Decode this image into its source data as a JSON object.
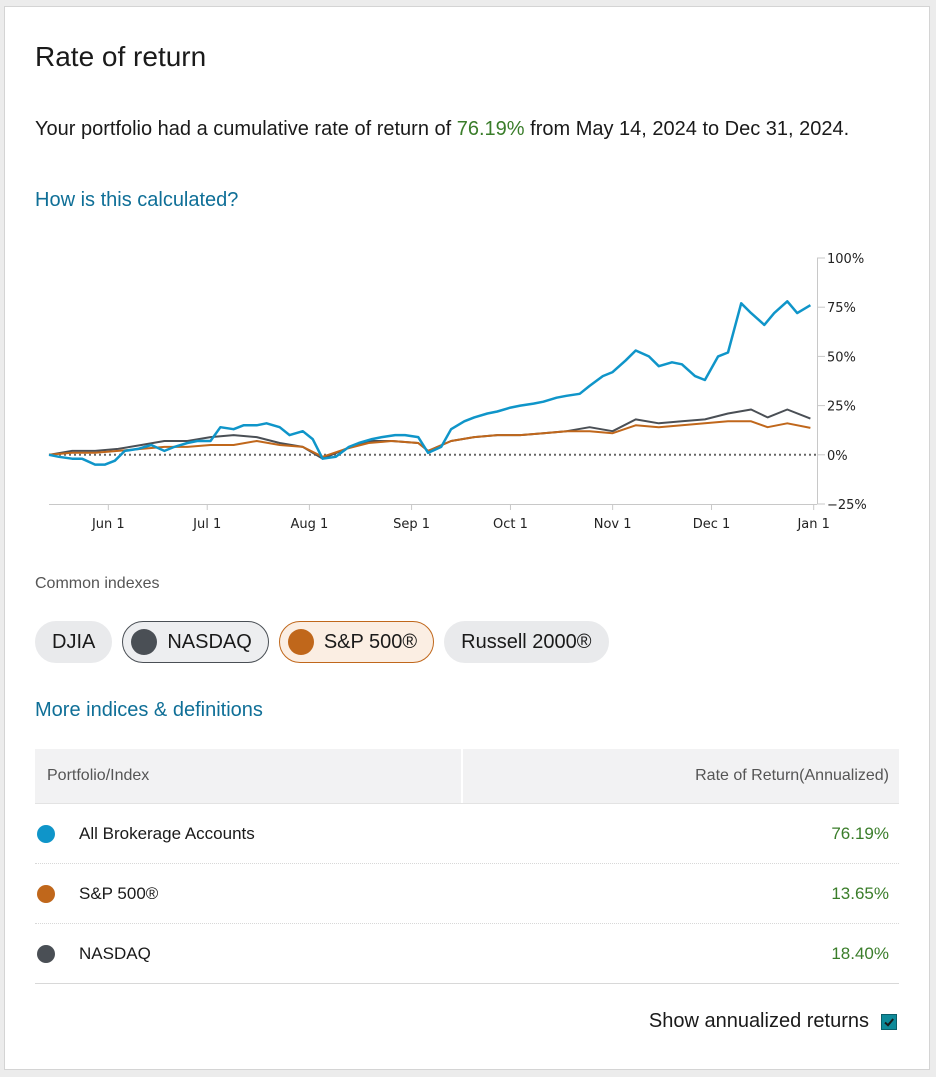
{
  "card": {
    "title": "Rate of return",
    "summary_prefix": "Your portfolio had a cumulative rate of return of ",
    "summary_pct": "76.19%",
    "summary_suffix": " from May 14, 2024 to Dec 31, 2024.",
    "calc_link": "How is this calculated?"
  },
  "colors": {
    "portfolio": "#0f95c9",
    "sp500": "#c0671b",
    "nasdaq": "#4a4f55",
    "positive": "#3a7d2a",
    "link": "#0f6f97"
  },
  "chart_data": {
    "type": "line",
    "x_ticks": [
      "Jun 1",
      "Jul 1",
      "Aug 1",
      "Sep 1",
      "Oct 1",
      "Nov 1",
      "Dec 1",
      "Jan 1"
    ],
    "y_ticks": [
      "100%",
      "75%",
      "50%",
      "25%",
      "0%",
      "−25%"
    ],
    "ylim": [
      -25,
      100
    ],
    "xlim": [
      "2024-05-14",
      "2025-01-02"
    ],
    "zero_line": true,
    "series": [
      {
        "name": "All Brokerage Accounts",
        "color": "#0f95c9",
        "points": [
          [
            "2024-05-14",
            0
          ],
          [
            "2024-05-17",
            -1
          ],
          [
            "2024-05-21",
            -2
          ],
          [
            "2024-05-24",
            -2
          ],
          [
            "2024-05-28",
            -5
          ],
          [
            "2024-05-31",
            -5
          ],
          [
            "2024-06-03",
            -3
          ],
          [
            "2024-06-06",
            2
          ],
          [
            "2024-06-10",
            3
          ],
          [
            "2024-06-14",
            5
          ],
          [
            "2024-06-18",
            2
          ],
          [
            "2024-06-21",
            4
          ],
          [
            "2024-06-25",
            6
          ],
          [
            "2024-06-28",
            7
          ],
          [
            "2024-07-02",
            7
          ],
          [
            "2024-07-05",
            14
          ],
          [
            "2024-07-09",
            13
          ],
          [
            "2024-07-12",
            15
          ],
          [
            "2024-07-16",
            15
          ],
          [
            "2024-07-19",
            16
          ],
          [
            "2024-07-23",
            14
          ],
          [
            "2024-07-26",
            10
          ],
          [
            "2024-07-30",
            12
          ],
          [
            "2024-08-02",
            8
          ],
          [
            "2024-08-05",
            -2
          ],
          [
            "2024-08-09",
            -1
          ],
          [
            "2024-08-13",
            4
          ],
          [
            "2024-08-16",
            6
          ],
          [
            "2024-08-20",
            8
          ],
          [
            "2024-08-23",
            9
          ],
          [
            "2024-08-27",
            10
          ],
          [
            "2024-08-30",
            10
          ],
          [
            "2024-09-03",
            9
          ],
          [
            "2024-09-06",
            1
          ],
          [
            "2024-09-10",
            4
          ],
          [
            "2024-09-13",
            13
          ],
          [
            "2024-09-17",
            17
          ],
          [
            "2024-09-20",
            19
          ],
          [
            "2024-09-24",
            21
          ],
          [
            "2024-09-27",
            22
          ],
          [
            "2024-10-01",
            24
          ],
          [
            "2024-10-04",
            25
          ],
          [
            "2024-10-08",
            26
          ],
          [
            "2024-10-11",
            27
          ],
          [
            "2024-10-15",
            29
          ],
          [
            "2024-10-18",
            30
          ],
          [
            "2024-10-22",
            31
          ],
          [
            "2024-10-25",
            35
          ],
          [
            "2024-10-29",
            40
          ],
          [
            "2024-11-01",
            42
          ],
          [
            "2024-11-05",
            48
          ],
          [
            "2024-11-08",
            53
          ],
          [
            "2024-11-12",
            50
          ],
          [
            "2024-11-15",
            45
          ],
          [
            "2024-11-19",
            47
          ],
          [
            "2024-11-22",
            46
          ],
          [
            "2024-11-26",
            40
          ],
          [
            "2024-11-29",
            38
          ],
          [
            "2024-12-03",
            50
          ],
          [
            "2024-12-06",
            52
          ],
          [
            "2024-12-10",
            77
          ],
          [
            "2024-12-13",
            72
          ],
          [
            "2024-12-17",
            66
          ],
          [
            "2024-12-20",
            72
          ],
          [
            "2024-12-24",
            78
          ],
          [
            "2024-12-27",
            72
          ],
          [
            "2024-12-31",
            76
          ]
        ]
      },
      {
        "name": "S&P 500®",
        "color": "#c0671b",
        "points": [
          [
            "2024-05-14",
            0
          ],
          [
            "2024-05-21",
            1
          ],
          [
            "2024-05-28",
            1
          ],
          [
            "2024-06-04",
            2
          ],
          [
            "2024-06-11",
            3
          ],
          [
            "2024-06-18",
            4
          ],
          [
            "2024-06-25",
            4
          ],
          [
            "2024-07-02",
            5
          ],
          [
            "2024-07-09",
            5
          ],
          [
            "2024-07-16",
            7
          ],
          [
            "2024-07-23",
            5
          ],
          [
            "2024-07-30",
            4
          ],
          [
            "2024-08-05",
            -1
          ],
          [
            "2024-08-12",
            3
          ],
          [
            "2024-08-19",
            6
          ],
          [
            "2024-08-26",
            7
          ],
          [
            "2024-09-03",
            6
          ],
          [
            "2024-09-06",
            2
          ],
          [
            "2024-09-13",
            7
          ],
          [
            "2024-09-20",
            9
          ],
          [
            "2024-09-27",
            10
          ],
          [
            "2024-10-04",
            10
          ],
          [
            "2024-10-11",
            11
          ],
          [
            "2024-10-18",
            12
          ],
          [
            "2024-10-25",
            12
          ],
          [
            "2024-11-01",
            11
          ],
          [
            "2024-11-08",
            15
          ],
          [
            "2024-11-15",
            14
          ],
          [
            "2024-11-22",
            15
          ],
          [
            "2024-11-29",
            16
          ],
          [
            "2024-12-06",
            17
          ],
          [
            "2024-12-13",
            17
          ],
          [
            "2024-12-18",
            14
          ],
          [
            "2024-12-24",
            16
          ],
          [
            "2024-12-31",
            13.65
          ]
        ]
      },
      {
        "name": "NASDAQ",
        "color": "#4a4f55",
        "points": [
          [
            "2024-05-14",
            0
          ],
          [
            "2024-05-21",
            2
          ],
          [
            "2024-05-28",
            2
          ],
          [
            "2024-06-04",
            3
          ],
          [
            "2024-06-11",
            5
          ],
          [
            "2024-06-18",
            7
          ],
          [
            "2024-06-25",
            7
          ],
          [
            "2024-07-02",
            9
          ],
          [
            "2024-07-09",
            10
          ],
          [
            "2024-07-16",
            9
          ],
          [
            "2024-07-23",
            6
          ],
          [
            "2024-07-30",
            4
          ],
          [
            "2024-08-05",
            -2
          ],
          [
            "2024-08-12",
            3
          ],
          [
            "2024-08-19",
            7
          ],
          [
            "2024-08-26",
            7
          ],
          [
            "2024-09-03",
            6
          ],
          [
            "2024-09-06",
            2
          ],
          [
            "2024-09-13",
            7
          ],
          [
            "2024-09-20",
            9
          ],
          [
            "2024-09-27",
            10
          ],
          [
            "2024-10-04",
            10
          ],
          [
            "2024-10-11",
            11
          ],
          [
            "2024-10-18",
            12
          ],
          [
            "2024-10-25",
            14
          ],
          [
            "2024-11-01",
            12
          ],
          [
            "2024-11-08",
            18
          ],
          [
            "2024-11-15",
            16
          ],
          [
            "2024-11-22",
            17
          ],
          [
            "2024-11-29",
            18
          ],
          [
            "2024-12-06",
            21
          ],
          [
            "2024-12-13",
            23
          ],
          [
            "2024-12-18",
            19
          ],
          [
            "2024-12-24",
            23
          ],
          [
            "2024-12-31",
            18.4
          ]
        ]
      }
    ]
  },
  "indexes": {
    "label": "Common indexes",
    "chips": [
      {
        "label": "DJIA",
        "selected": false
      },
      {
        "label": "NASDAQ",
        "selected": true,
        "color": "#4a4f55"
      },
      {
        "label": "S&P 500®",
        "selected": true,
        "color": "#c0671b"
      },
      {
        "label": "Russell 2000®",
        "selected": false
      }
    ],
    "more_link": "More indices & definitions"
  },
  "table": {
    "col1": "Portfolio/Index",
    "col2": "Rate of Return(Annualized)",
    "rows": [
      {
        "name": "All Brokerage Accounts",
        "value": "76.19%",
        "color": "#0f95c9"
      },
      {
        "name": "S&P 500®",
        "value": "13.65%",
        "color": "#c0671b"
      },
      {
        "name": "NASDAQ",
        "value": "18.40%",
        "color": "#4a4f55"
      }
    ]
  },
  "toggle": {
    "label": "Show annualized returns",
    "checked": true
  }
}
